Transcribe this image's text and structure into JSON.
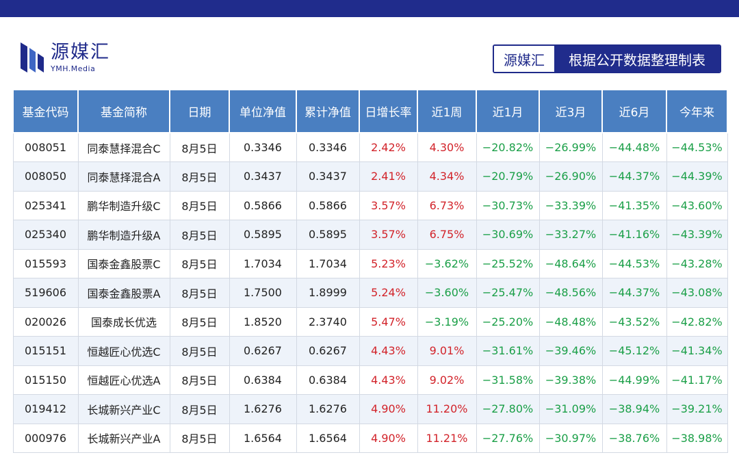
{
  "brand": {
    "logo_name": "源媒汇",
    "logo_sub": "YMH.Media",
    "tag_brand": "源媒汇",
    "tag_desc": "根据公开数据整理制表",
    "colors": {
      "navy": "#202c8c",
      "header_blue": "#4a7fc1",
      "up_red": "#d2232a",
      "down_green": "#1a9f47"
    }
  },
  "table": {
    "headers": [
      "基金代码",
      "基金简称",
      "日期",
      "单位净值",
      "累计净值",
      "日增长率",
      "近1周",
      "近1月",
      "近3月",
      "近6月",
      "今年来"
    ],
    "rows": [
      [
        "008051",
        "同泰慧择混合C",
        "8月5日",
        "0.3346",
        "0.3346",
        "2.42%",
        "4.30%",
        "−20.82%",
        "−26.99%",
        "−44.48%",
        "−44.53%"
      ],
      [
        "008050",
        "同泰慧择混合A",
        "8月5日",
        "0.3437",
        "0.3437",
        "2.41%",
        "4.34%",
        "−20.79%",
        "−26.90%",
        "−44.37%",
        "−44.39%"
      ],
      [
        "025341",
        "鹏华制造升级C",
        "8月5日",
        "0.5866",
        "0.5866",
        "3.57%",
        "6.73%",
        "−30.73%",
        "−33.39%",
        "−41.35%",
        "−43.60%"
      ],
      [
        "025340",
        "鹏华制造升级A",
        "8月5日",
        "0.5895",
        "0.5895",
        "3.57%",
        "6.75%",
        "−30.69%",
        "−33.27%",
        "−41.16%",
        "−43.39%"
      ],
      [
        "015593",
        "国泰金鑫股票C",
        "8月5日",
        "1.7034",
        "1.7034",
        "5.23%",
        "−3.62%",
        "−25.52%",
        "−48.64%",
        "−44.53%",
        "−43.28%"
      ],
      [
        "519606",
        "国泰金鑫股票A",
        "8月5日",
        "1.7500",
        "1.8999",
        "5.24%",
        "−3.60%",
        "−25.47%",
        "−48.56%",
        "−44.37%",
        "−43.08%"
      ],
      [
        "020026",
        "国泰成长优选",
        "8月5日",
        "1.8520",
        "2.3740",
        "5.47%",
        "−3.19%",
        "−25.20%",
        "−48.48%",
        "−43.52%",
        "−42.82%"
      ],
      [
        "015151",
        "恒越匠心优选C",
        "8月5日",
        "0.6267",
        "0.6267",
        "4.43%",
        "9.01%",
        "−31.61%",
        "−39.46%",
        "−45.12%",
        "−41.34%"
      ],
      [
        "015150",
        "恒越匠心优选A",
        "8月5日",
        "0.6384",
        "0.6384",
        "4.43%",
        "9.02%",
        "−31.58%",
        "−39.38%",
        "−44.99%",
        "−41.17%"
      ],
      [
        "019412",
        "长城新兴产业C",
        "8月5日",
        "1.6276",
        "1.6276",
        "4.90%",
        "11.20%",
        "−27.80%",
        "−31.09%",
        "−38.94%",
        "−39.21%"
      ],
      [
        "000976",
        "长城新兴产业A",
        "8月5日",
        "1.6564",
        "1.6564",
        "4.90%",
        "11.21%",
        "−27.76%",
        "−30.97%",
        "−38.76%",
        "−38.98%"
      ]
    ]
  }
}
